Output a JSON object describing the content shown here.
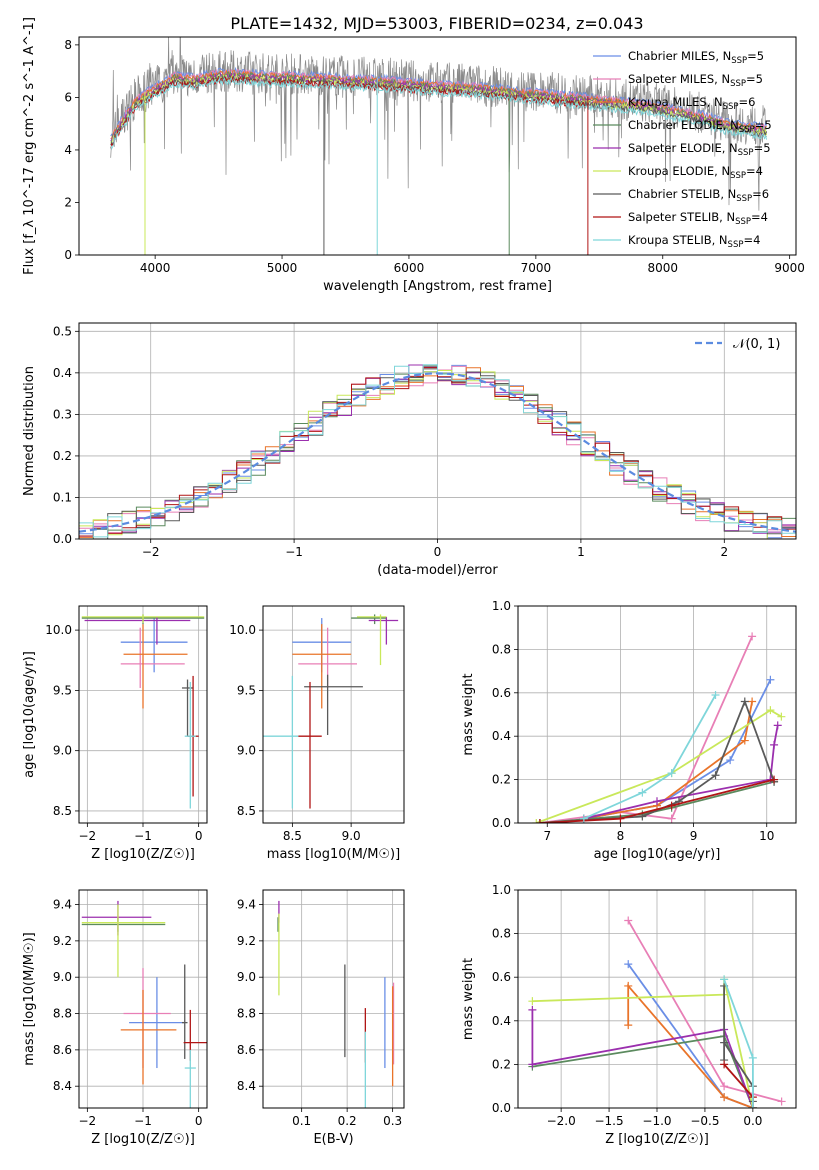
{
  "figure_title": "PLATE=1432, MJD=53003, FIBERID=0234, z=0.043",
  "series_colors": [
    "#6a8ee6",
    "#e87fb6",
    "#e9742a",
    "#5b8a5e",
    "#9b2fae",
    "#c9e85a",
    "#5a5a5a",
    "#b01515",
    "#7fd6da"
  ],
  "chart_data": [
    {
      "type": "line",
      "title": "PLATE=1432, MJD=53003, FIBERID=0234, z=0.043",
      "xlabel": "wavelength [Angstrom, rest frame]",
      "ylabel": "Flux [f_λ 10^-17 erg cm^-2 s^-1 A^-1]",
      "xlim": [
        3400,
        9050
      ],
      "ylim": [
        0,
        8.3
      ],
      "xticks": [
        "4000",
        "5000",
        "6000",
        "7000",
        "8000",
        "9000"
      ],
      "yticks": [
        "0",
        "2",
        "4",
        "6",
        "8"
      ],
      "grid": false,
      "legend_position": "right",
      "legend": [
        {
          "label": "Chabrier MILES, N",
          "sub": "SSP",
          "suffix": "=5"
        },
        {
          "label": "Salpeter MILES, N",
          "sub": "SSP",
          "suffix": "=5"
        },
        {
          "label": "Kroupa MILES, N",
          "sub": "SSP",
          "suffix": "=6"
        },
        {
          "label": "Chabrier ELODIE, N",
          "sub": "SSP",
          "suffix": "=5"
        },
        {
          "label": "Salpeter ELODIE, N",
          "sub": "SSP",
          "suffix": "=5"
        },
        {
          "label": "Kroupa ELODIE, N",
          "sub": "SSP",
          "suffix": "=4"
        },
        {
          "label": "Chabrier STELIB, N",
          "sub": "SSP",
          "suffix": "=6"
        },
        {
          "label": "Salpeter STELIB, N",
          "sub": "SSP",
          "suffix": "=4"
        },
        {
          "label": "Kroupa STELIB, N",
          "sub": "SSP",
          "suffix": "=4"
        }
      ],
      "continuum": {
        "x": [
          3650,
          3750,
          3850,
          3950,
          4050,
          4150,
          4300,
          4500,
          4700,
          4900,
          5100,
          5300,
          5500,
          5700,
          5900,
          6100,
          6300,
          6500,
          6700,
          6900,
          7100,
          7300,
          7500,
          7700,
          7900,
          8100,
          8300,
          8500,
          8800
        ],
        "y": [
          4.5,
          5.3,
          6.0,
          6.3,
          6.6,
          6.9,
          6.8,
          7.0,
          7.0,
          6.9,
          6.9,
          6.85,
          6.8,
          6.75,
          6.7,
          6.6,
          6.55,
          6.5,
          6.4,
          6.3,
          6.2,
          6.1,
          6.0,
          5.9,
          5.8,
          5.6,
          5.4,
          5.1,
          4.9
        ]
      }
    },
    {
      "type": "histogram",
      "xlabel": "(data-model)/error",
      "ylabel": "Normed distribution",
      "xlim": [
        -2.5,
        2.5
      ],
      "ylim": [
        0,
        0.52
      ],
      "xticks": [
        "−2",
        "−1",
        "0",
        "1",
        "2"
      ],
      "yticks": [
        "0.0",
        "0.1",
        "0.2",
        "0.3",
        "0.4",
        "0.5"
      ],
      "grid": true,
      "legend_position": "top-right",
      "reference_curve": "𝒩(0, 1)",
      "bin_width": 0.1
    },
    {
      "type": "scatter",
      "xlabel": "Z [log10(Z/Z☉)]",
      "ylabel": "age  [log10(age/yr)]",
      "xlim": [
        -2.15,
        0.15
      ],
      "ylim": [
        8.4,
        10.2
      ],
      "xticks": [
        "−2",
        "−1",
        "0"
      ],
      "yticks": [
        "8.5",
        "9.0",
        "9.5",
        "10.0"
      ],
      "grid": true,
      "points": [
        {
          "x": -0.8,
          "y": 9.9,
          "xe": [
            0.6,
            0.6
          ],
          "ye": [
            0.25,
            0.2
          ]
        },
        {
          "x": -1.05,
          "y": 9.72,
          "xe": [
            0.35,
            0.8
          ],
          "ye": [
            0.2,
            0.3
          ]
        },
        {
          "x": -1.0,
          "y": 9.8,
          "xe": [
            0.35,
            0.8
          ],
          "ye": [
            0.45,
            0.25
          ]
        },
        {
          "x": -1.0,
          "y": 10.1,
          "xe": [
            1.1,
            1.1
          ],
          "ye": [
            0.05,
            0.03
          ]
        },
        {
          "x": -0.75,
          "y": 10.08,
          "xe": [
            1.3,
            0.6
          ],
          "ye": [
            0.2,
            0.03
          ]
        },
        {
          "x": -1.0,
          "y": 10.11,
          "xe": [
            1.1,
            1.1
          ],
          "ye": [
            0.05,
            0.02
          ]
        },
        {
          "x": -0.2,
          "y": 9.52,
          "xe": [
            0.1,
            0.1
          ],
          "ye": [
            0.4,
            0.07
          ]
        },
        {
          "x": -0.1,
          "y": 9.12,
          "xe": [
            0.1,
            0.1
          ],
          "ye": [
            0.5,
            0.5
          ]
        },
        {
          "x": -0.15,
          "y": 9.12,
          "xe": [
            0.1,
            0.1
          ],
          "ye": [
            0.6,
            0.45
          ]
        }
      ]
    },
    {
      "type": "scatter",
      "xlabel": "mass [log10(M/M☉)]",
      "ylabel": "",
      "xlim": [
        8.25,
        9.45
      ],
      "ylim": [
        8.4,
        10.2
      ],
      "xticks": [
        "8.5",
        "9.0"
      ],
      "yticks": [
        "8.5",
        "9.0",
        "9.5",
        "10.0"
      ],
      "grid": true,
      "points": [
        {
          "x": 8.75,
          "y": 9.9,
          "xe": [
            0.25,
            0.25
          ],
          "ye": [
            0.25,
            0.2
          ]
        },
        {
          "x": 8.8,
          "y": 9.72,
          "xe": [
            0.25,
            0.25
          ],
          "ye": [
            0.2,
            0.3
          ]
        },
        {
          "x": 8.75,
          "y": 9.8,
          "xe": [
            0.25,
            0.25
          ],
          "ye": [
            0.45,
            0.25
          ]
        },
        {
          "x": 9.2,
          "y": 10.1,
          "xe": [
            0.2,
            0.1
          ],
          "ye": [
            0.05,
            0.03
          ]
        },
        {
          "x": 9.3,
          "y": 10.08,
          "xe": [
            0.15,
            0.1
          ],
          "ye": [
            0.2,
            0.03
          ]
        },
        {
          "x": 9.25,
          "y": 10.11,
          "xe": [
            0.2,
            0.05
          ],
          "ye": [
            0.4,
            0.02
          ]
        },
        {
          "x": 8.8,
          "y": 9.53,
          "xe": [
            0.2,
            0.3
          ],
          "ye": [
            0.4,
            0.1
          ]
        },
        {
          "x": 8.65,
          "y": 9.12,
          "xe": [
            0.1,
            0.1
          ],
          "ye": [
            0.6,
            0.45
          ]
        },
        {
          "x": 8.5,
          "y": 9.12,
          "xe": [
            0.3,
            0.05
          ],
          "ye": [
            0.6,
            0.5
          ]
        }
      ]
    },
    {
      "type": "line",
      "xlabel": "age  [log10(age/yr)]",
      "ylabel": "mass weight",
      "xlim": [
        6.6,
        10.4
      ],
      "ylim": [
        0,
        1.0
      ],
      "xticks": [
        "7",
        "8",
        "9",
        "10"
      ],
      "yticks": [
        "0.0",
        "0.2",
        "0.4",
        "0.6",
        "0.8",
        "1.0"
      ],
      "grid": true,
      "series": [
        {
          "x": [
            7.5,
            8.5,
            9.5,
            10.05
          ],
          "y": [
            0.02,
            0.08,
            0.29,
            0.66
          ]
        },
        {
          "x": [
            6.9,
            8.0,
            8.7,
            9.8
          ],
          "y": [
            0.0,
            0.05,
            0.02,
            0.86
          ]
        },
        {
          "x": [
            7.5,
            8.5,
            9.7,
            9.8
          ],
          "y": [
            0.02,
            0.08,
            0.38,
            0.56
          ]
        },
        {
          "x": [
            6.9,
            8.3,
            8.7,
            10.1
          ],
          "y": [
            0.0,
            0.04,
            0.07,
            0.19
          ]
        },
        {
          "x": [
            7.5,
            8.5,
            10.05,
            10.1,
            10.15
          ],
          "y": [
            0.02,
            0.1,
            0.2,
            0.36,
            0.45
          ]
        },
        {
          "x": [
            6.85,
            8.7,
            10.05,
            10.2
          ],
          "y": [
            0.0,
            0.23,
            0.52,
            0.49
          ]
        },
        {
          "x": [
            6.9,
            8.3,
            8.8,
            9.3,
            9.7,
            10.1
          ],
          "y": [
            0.0,
            0.03,
            0.1,
            0.22,
            0.56,
            0.19
          ]
        },
        {
          "x": [
            6.9,
            8.0,
            8.7,
            10.1
          ],
          "y": [
            0.0,
            0.02,
            0.08,
            0.2
          ]
        },
        {
          "x": [
            7.5,
            8.3,
            8.7,
            9.3
          ],
          "y": [
            0.02,
            0.14,
            0.23,
            0.59
          ]
        }
      ]
    },
    {
      "type": "scatter",
      "xlabel": "Z [log10(Z/Z☉)]",
      "ylabel": "mass [log10(M/M☉)]",
      "xlim": [
        -2.15,
        0.15
      ],
      "ylim": [
        8.28,
        9.48
      ],
      "xticks": [
        "−2",
        "−1",
        "0"
      ],
      "yticks": [
        "8.4",
        "8.6",
        "8.8",
        "9.0",
        "9.2",
        "9.4"
      ],
      "grid": true,
      "points": [
        {
          "x": -0.75,
          "y": 8.75,
          "xe": [
            0.5,
            0.5
          ],
          "ye": [
            0.25,
            0.25
          ]
        },
        {
          "x": -1.0,
          "y": 8.8,
          "xe": [
            0.35,
            0.5
          ],
          "ye": [
            0.3,
            0.25
          ]
        },
        {
          "x": -1.0,
          "y": 8.71,
          "xe": [
            0.4,
            0.6
          ],
          "ye": [
            0.3,
            0.22
          ]
        },
        {
          "x": -1.45,
          "y": 9.29,
          "xe": [
            0.65,
            0.85
          ],
          "ye": [
            0.04,
            0.04
          ]
        },
        {
          "x": -1.45,
          "y": 9.33,
          "xe": [
            0.65,
            0.6
          ],
          "ye": [
            0.1,
            0.09
          ]
        },
        {
          "x": -1.45,
          "y": 9.3,
          "xe": [
            0.65,
            0.85
          ],
          "ye": [
            0.3,
            0.1
          ]
        },
        {
          "x": -0.25,
          "y": 8.75,
          "xe": [
            0.05,
            0.05
          ],
          "ye": [
            0.2,
            0.32
          ]
        },
        {
          "x": -0.15,
          "y": 8.64,
          "xe": [
            0.12,
            0.3
          ],
          "ye": [
            0.1,
            0.18
          ]
        },
        {
          "x": -0.15,
          "y": 8.5,
          "xe": [
            0.1,
            0.1
          ],
          "ye": [
            0.22,
            0.1
          ]
        }
      ]
    },
    {
      "type": "scatter",
      "xlabel": "E(B-V)",
      "ylabel": "",
      "xlim": [
        0.015,
        0.325
      ],
      "ylim": [
        8.28,
        9.48
      ],
      "xticks": [
        "0.1",
        "0.2",
        "0.3"
      ],
      "yticks": [
        "8.4",
        "8.6",
        "8.8",
        "9.0",
        "9.2",
        "9.4"
      ],
      "grid": true,
      "points": [
        {
          "x": 0.283,
          "y": 8.75,
          "ye": [
            0.25,
            0.25
          ]
        },
        {
          "x": 0.302,
          "y": 8.72,
          "ye": [
            0.2,
            0.25
          ]
        },
        {
          "x": 0.3,
          "y": 8.65,
          "ye": [
            0.25,
            0.3
          ]
        },
        {
          "x": 0.048,
          "y": 9.29,
          "ye": [
            0.04,
            0.04
          ]
        },
        {
          "x": 0.05,
          "y": 9.36,
          "ye": [
            0.06,
            0.06
          ]
        },
        {
          "x": 0.05,
          "y": 9.15,
          "ye": [
            0.25,
            0.2
          ]
        },
        {
          "x": 0.195,
          "y": 8.82,
          "ye": [
            0.26,
            0.25
          ]
        },
        {
          "x": 0.24,
          "y": 8.68,
          "ye": [
            0.15,
            0.15
          ]
        },
        {
          "x": 0.24,
          "y": 8.5,
          "ye": [
            0.22,
            0.2
          ]
        }
      ]
    },
    {
      "type": "line",
      "xlabel": "Z [log10(Z/Z☉)]",
      "ylabel": "mass weight",
      "xlim": [
        -2.45,
        0.45
      ],
      "ylim": [
        0,
        1.0
      ],
      "xticks": [
        "−2.0",
        "−1.5",
        "−1.0",
        "−0.5",
        "0.0"
      ],
      "yticks": [
        "0.0",
        "0.2",
        "0.4",
        "0.6",
        "0.8",
        "1.0"
      ],
      "grid": true,
      "series": [
        {
          "x": [
            -1.3,
            -0.3,
            0.0
          ],
          "y": [
            0.66,
            0.05,
            0.0
          ]
        },
        {
          "x": [
            -1.3,
            -0.3,
            0.3
          ],
          "y": [
            0.86,
            0.1,
            0.03
          ]
        },
        {
          "x": [
            -1.3,
            -1.3,
            -0.3,
            0.0
          ],
          "y": [
            0.38,
            0.56,
            0.05,
            0.0
          ]
        },
        {
          "x": [
            -2.3,
            -0.3,
            0.0
          ],
          "y": [
            0.19,
            0.33,
            0.0
          ]
        },
        {
          "x": [
            -2.3,
            -2.3,
            -0.3,
            0.0
          ],
          "y": [
            0.45,
            0.2,
            0.36,
            0.0
          ]
        },
        {
          "x": [
            -2.3,
            -0.3,
            -0.3,
            0.0
          ],
          "y": [
            0.49,
            0.52,
            0.59,
            0.0
          ]
        },
        {
          "x": [
            -0.3,
            -0.3,
            -0.3,
            0.0,
            0.0
          ],
          "y": [
            0.22,
            0.56,
            0.3,
            0.1,
            0.03
          ]
        },
        {
          "x": [
            -0.3,
            0.0,
            0.0
          ],
          "y": [
            0.2,
            0.05,
            0.0
          ]
        },
        {
          "x": [
            -0.3,
            0.0,
            0.0
          ],
          "y": [
            0.59,
            0.23,
            0.0
          ]
        }
      ]
    }
  ]
}
